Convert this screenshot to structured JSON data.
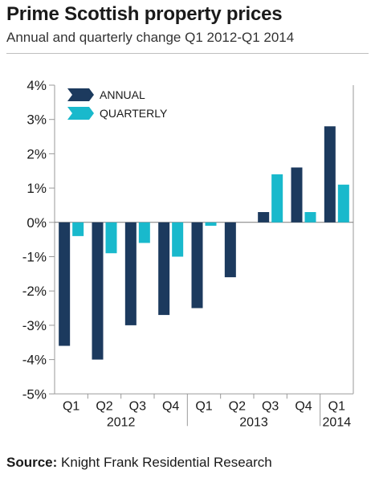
{
  "title": "Prime Scottish property prices",
  "subtitle": "Annual and quarterly change Q1 2012-Q1 2014",
  "source": {
    "label": "Source:",
    "text": "Knight Frank Residential Research"
  },
  "colors": {
    "annual": "#1c3a5e",
    "quarterly": "#19b9cc"
  },
  "chart_data": {
    "type": "bar",
    "categories": [
      "Q1",
      "Q2",
      "Q3",
      "Q4",
      "Q1",
      "Q2",
      "Q3",
      "Q4",
      "Q1"
    ],
    "years": [
      {
        "label": "2012",
        "span": [
          0,
          3
        ]
      },
      {
        "label": "2013",
        "span": [
          4,
          7
        ]
      },
      {
        "label": "2014",
        "span": [
          8,
          8
        ]
      }
    ],
    "series": [
      {
        "name": "ANNUAL",
        "values": [
          -3.6,
          -4.0,
          -3.0,
          -2.7,
          -2.5,
          -1.6,
          0.3,
          1.6,
          2.8
        ]
      },
      {
        "name": "QUARTERLY",
        "values": [
          -0.4,
          -0.9,
          -0.6,
          -1.0,
          -0.1,
          null,
          1.4,
          0.3,
          1.1
        ]
      }
    ],
    "ylim": [
      -5,
      4
    ],
    "yticks": [
      4,
      3,
      2,
      1,
      0,
      -1,
      -2,
      -3,
      -4,
      -5
    ],
    "ytick_labels": [
      "4%",
      "3%",
      "2%",
      "1%",
      "0%",
      "-1%",
      "-2%",
      "-3%",
      "-4%",
      "-5%"
    ],
    "legend": "top-left",
    "grid": false
  }
}
